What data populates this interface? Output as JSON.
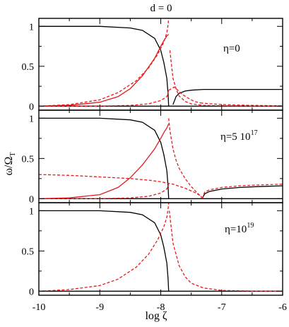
{
  "figure": {
    "title": "d = 0",
    "xlabel": "log ζ",
    "ylabel": {
      "base": "ω/Ω",
      "subscript": "T"
    }
  },
  "colors": {
    "black_curve": "#000000",
    "red_curve": "#e41a1c",
    "axis": "#000000"
  },
  "chart_data": [
    {
      "type": "line",
      "panel": "top",
      "label_parts": {
        "base": "η=0",
        "sup": ""
      },
      "xlim": [
        -10,
        -6
      ],
      "ylim": [
        -0.05,
        1.1
      ],
      "x_ticks": [
        -10,
        -9,
        -8,
        -7,
        -6
      ],
      "y_ticks": [
        0,
        0.5,
        1
      ],
      "y_tick_labels": [
        "0",
        "0.5",
        "1"
      ],
      "series": [
        {
          "style": "solid",
          "color": "black",
          "x": [
            -10,
            -9.0,
            -8.5,
            -8.3,
            -8.1,
            -8.0,
            -7.95,
            -7.9,
            -7.88,
            -7.87
          ],
          "y": [
            1,
            1,
            0.98,
            0.95,
            0.85,
            0.7,
            0.55,
            0.35,
            0.15,
            0.0
          ]
        },
        {
          "style": "solid",
          "color": "black",
          "x": [
            -7.8,
            -7.75,
            -7.7,
            -7.6,
            -7.5,
            -7.3,
            -7.0,
            -6.5,
            -6.0
          ],
          "y": [
            0.02,
            0.12,
            0.16,
            0.19,
            0.2,
            0.21,
            0.21,
            0.21,
            0.21
          ]
        },
        {
          "style": "solid",
          "color": "black",
          "x": [
            -10,
            -6
          ],
          "y": [
            0,
            0
          ]
        },
        {
          "style": "solid",
          "color": "red",
          "x": [
            -10,
            -9.5,
            -9.0,
            -8.7,
            -8.5,
            -8.3,
            -8.1,
            -8.0,
            -7.95,
            -7.9,
            -7.87
          ],
          "y": [
            0,
            0.01,
            0.05,
            0.12,
            0.22,
            0.38,
            0.6,
            0.75,
            0.82,
            0.88,
            0.9
          ]
        },
        {
          "style": "dashed",
          "color": "red",
          "x": [
            -10,
            -9.5,
            -9.0,
            -8.7,
            -8.4,
            -8.2,
            -8.05,
            -7.95,
            -7.9,
            -7.88,
            -7.87
          ],
          "y": [
            0,
            0.02,
            0.08,
            0.17,
            0.32,
            0.48,
            0.65,
            0.8,
            0.92,
            1.02,
            1.1
          ]
        },
        {
          "style": "dashed",
          "color": "red",
          "x": [
            -7.85,
            -7.8,
            -7.75,
            -7.7,
            -7.6,
            -7.5,
            -7.3,
            -7.0,
            -6.5,
            -6.0
          ],
          "y": [
            0.7,
            0.35,
            0.22,
            0.13,
            0.06,
            0.03,
            0.01,
            0.005,
            0.002,
            0.0
          ]
        },
        {
          "style": "dashed",
          "color": "red",
          "x": [
            -10,
            -9.0,
            -8.5,
            -8.2,
            -8.0,
            -7.9,
            -7.87
          ],
          "y": [
            0,
            0.0,
            0.01,
            0.03,
            0.07,
            0.12,
            0.2
          ]
        },
        {
          "style": "dashed",
          "color": "red",
          "x": [
            -7.87,
            -7.82,
            -7.78,
            -7.72,
            -7.65,
            -7.55,
            -7.45,
            -7.35
          ],
          "y": [
            0.2,
            0.22,
            0.24,
            0.2,
            0.15,
            0.1,
            0.06,
            0.04
          ]
        },
        {
          "style": "dashed",
          "color": "red",
          "x": [
            -7.35,
            -7.0,
            -6.5,
            -6.0
          ],
          "y": [
            0.04,
            0.02,
            0.01,
            0.005
          ]
        }
      ]
    },
    {
      "type": "line",
      "panel": "middle",
      "label_parts": {
        "base": "η=5 10",
        "sup": "17"
      },
      "xlim": [
        -10,
        -6
      ],
      "ylim": [
        -0.05,
        1.1
      ],
      "x_ticks": [
        -10,
        -9,
        -8,
        -7,
        -6
      ],
      "y_ticks": [
        0,
        0.5,
        1
      ],
      "y_tick_labels": [
        "0",
        "0.5",
        "1"
      ],
      "series": [
        {
          "style": "solid",
          "color": "black",
          "x": [
            -10,
            -9.0,
            -8.5,
            -8.3,
            -8.1,
            -8.0,
            -7.95,
            -7.9,
            -7.88,
            -7.87
          ],
          "y": [
            1,
            1,
            0.98,
            0.95,
            0.85,
            0.7,
            0.55,
            0.35,
            0.15,
            0.0
          ]
        },
        {
          "style": "solid",
          "color": "black",
          "x": [
            -7.32,
            -7.28,
            -7.2,
            -7.0,
            -6.7,
            -6.4,
            -6.0
          ],
          "y": [
            0.0,
            0.06,
            0.09,
            0.12,
            0.14,
            0.15,
            0.16
          ]
        },
        {
          "style": "solid",
          "color": "black",
          "x": [
            -10,
            -6
          ],
          "y": [
            0,
            0
          ]
        },
        {
          "style": "solid",
          "color": "red",
          "x": [
            -10,
            -9.5,
            -9.0,
            -8.7,
            -8.5,
            -8.3,
            -8.1,
            -8.0,
            -7.95,
            -7.9,
            -7.87
          ],
          "y": [
            0,
            0.01,
            0.05,
            0.14,
            0.26,
            0.42,
            0.62,
            0.75,
            0.82,
            0.88,
            0.93
          ]
        },
        {
          "style": "dashed",
          "color": "red",
          "x": [
            -10,
            -9.5,
            -9.0,
            -8.5,
            -8.2,
            -8.0,
            -7.8,
            -7.6,
            -7.45,
            -7.38,
            -7.34,
            -7.32
          ],
          "y": [
            0.3,
            0.29,
            0.27,
            0.25,
            0.23,
            0.21,
            0.18,
            0.13,
            0.08,
            0.05,
            0.03,
            0.0
          ]
        },
        {
          "style": "dashed",
          "color": "red",
          "x": [
            -10,
            -9.0,
            -8.5,
            -8.2,
            -8.0,
            -7.9,
            -7.87
          ],
          "y": [
            0,
            0.0,
            0.01,
            0.03,
            0.07,
            0.12,
            0.18
          ]
        },
        {
          "style": "dashed",
          "color": "red",
          "x": [
            -7.87,
            -7.85,
            -7.8,
            -7.75,
            -7.7,
            -7.6,
            -7.5,
            -7.4,
            -7.33
          ],
          "y": [
            1.0,
            0.85,
            0.62,
            0.48,
            0.38,
            0.25,
            0.15,
            0.07,
            0.02
          ]
        },
        {
          "style": "dashed",
          "color": "red",
          "x": [
            -7.32,
            -7.28,
            -7.2,
            -7.0,
            -6.7,
            -6.4,
            -6.0
          ],
          "y": [
            0.0,
            0.08,
            0.11,
            0.14,
            0.16,
            0.17,
            0.18
          ]
        }
      ]
    },
    {
      "type": "line",
      "panel": "bottom",
      "label_parts": {
        "base": "η=10",
        "sup": "19"
      },
      "xlim": [
        -10,
        -6
      ],
      "ylim": [
        -0.05,
        1.1
      ],
      "x_ticks": [
        -10,
        -9,
        -8,
        -7,
        -6
      ],
      "x_tick_labels": [
        "-10",
        "-9",
        "-8",
        "-7",
        "-6"
      ],
      "y_ticks": [
        0,
        0.5,
        1
      ],
      "y_tick_labels": [
        "0",
        "0.5",
        "1"
      ],
      "series": [
        {
          "style": "solid",
          "color": "black",
          "x": [
            -10,
            -9.0,
            -8.5,
            -8.3,
            -8.1,
            -8.0,
            -7.95,
            -7.9,
            -7.88,
            -7.87
          ],
          "y": [
            1,
            1,
            0.98,
            0.95,
            0.85,
            0.7,
            0.55,
            0.35,
            0.15,
            0.0
          ]
        },
        {
          "style": "solid",
          "color": "black",
          "x": [
            -10,
            -6
          ],
          "y": [
            0,
            0
          ]
        },
        {
          "style": "dashed",
          "color": "red",
          "x": [
            -10,
            -9.5,
            -9.0,
            -8.7,
            -8.4,
            -8.2,
            -8.05,
            -7.95,
            -7.9,
            -7.88,
            -7.87
          ],
          "y": [
            0,
            0.02,
            0.07,
            0.15,
            0.3,
            0.46,
            0.64,
            0.8,
            0.92,
            1.02,
            1.1
          ]
        },
        {
          "style": "dashed",
          "color": "red",
          "x": [
            -7.86,
            -7.8,
            -7.7,
            -7.6,
            -7.5,
            -7.3,
            -7.0,
            -6.5,
            -6.0
          ],
          "y": [
            1.0,
            0.6,
            0.32,
            0.18,
            0.1,
            0.04,
            0.01,
            0.002,
            0.0
          ]
        }
      ]
    }
  ]
}
